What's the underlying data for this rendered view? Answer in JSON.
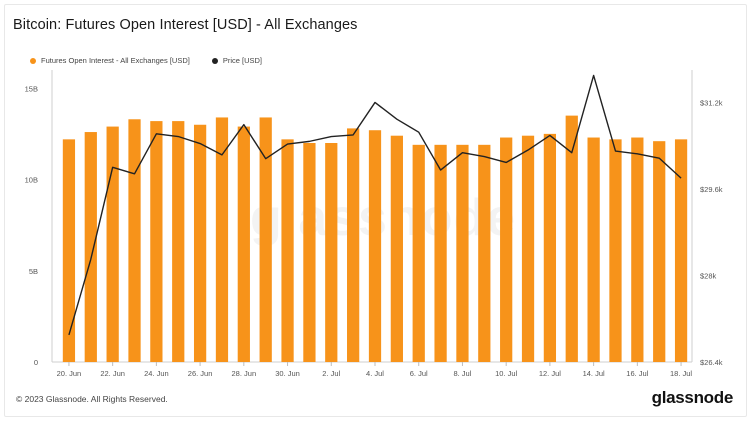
{
  "header": {
    "title": "Bitcoin: Futures Open Interest [USD] - All Exchanges"
  },
  "footer": {
    "copyright": "© 2023 Glassnode. All Rights Reserved.",
    "brand": "glassnode"
  },
  "watermark": "glassnode",
  "colors": {
    "bar": "#f7931a",
    "line": "#222222",
    "grid": "#e6e6e6"
  },
  "chart_data": {
    "type": "bar",
    "title": "Bitcoin: Futures Open Interest [USD] - All Exchanges",
    "legend_position": "top-left",
    "grid": false,
    "categories": [
      "2023-06-20",
      "2023-06-21",
      "2023-06-22",
      "2023-06-23",
      "2023-06-24",
      "2023-06-25",
      "2023-06-26",
      "2023-06-27",
      "2023-06-28",
      "2023-06-29",
      "2023-06-30",
      "2023-07-01",
      "2023-07-02",
      "2023-07-03",
      "2023-07-04",
      "2023-07-05",
      "2023-07-06",
      "2023-07-07",
      "2023-07-08",
      "2023-07-09",
      "2023-07-10",
      "2023-07-11",
      "2023-07-12",
      "2023-07-13",
      "2023-07-14",
      "2023-07-15",
      "2023-07-16",
      "2023-07-17",
      "2023-07-18"
    ],
    "x_tick_labels": [
      "20. Jun",
      "22. Jun",
      "24. Jun",
      "26. Jun",
      "28. Jun",
      "30. Jun",
      "2. Jul",
      "4. Jul",
      "6. Jul",
      "8. Jul",
      "10. Jul",
      "12. Jul",
      "14. Jul",
      "16. Jul",
      "18. Jul"
    ],
    "x_tick_indices": [
      0,
      2,
      4,
      6,
      8,
      10,
      12,
      14,
      16,
      18,
      20,
      22,
      24,
      26,
      28
    ],
    "y_left": {
      "ticks": [
        0,
        5,
        10,
        15
      ],
      "tick_labels": [
        "0",
        "5B",
        "10B",
        "15B"
      ],
      "range": [
        0,
        16
      ]
    },
    "y_right": {
      "ticks": [
        26400,
        28000,
        29600,
        31200
      ],
      "tick_labels": [
        "$26.4k",
        "$28k",
        "$29.6k",
        "$31.2k"
      ],
      "range": [
        26400,
        31800
      ]
    },
    "series": [
      {
        "name": "Futures Open Interest - All Exchanges [USD]",
        "type": "bar",
        "axis": "left",
        "values": [
          12.2,
          12.6,
          12.9,
          13.3,
          13.2,
          13.2,
          13.0,
          13.4,
          12.9,
          13.4,
          12.2,
          12.0,
          12.0,
          12.8,
          12.7,
          12.4,
          11.9,
          11.9,
          11.9,
          11.9,
          12.3,
          12.4,
          12.5,
          13.5,
          12.3,
          12.2,
          12.3,
          12.1,
          12.2
        ]
      },
      {
        "name": "Price [USD]",
        "type": "line",
        "axis": "right",
        "values": [
          26900,
          28300,
          30000,
          29880,
          30620,
          30570,
          30440,
          30230,
          30790,
          30160,
          30430,
          30480,
          30570,
          30600,
          31200,
          30890,
          30650,
          29950,
          30270,
          30200,
          30090,
          30320,
          30590,
          30270,
          31700,
          30300,
          30250,
          30170,
          29800
        ]
      }
    ]
  }
}
